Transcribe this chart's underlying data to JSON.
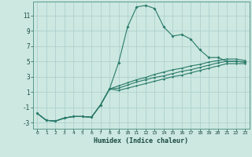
{
  "xlabel": "Humidex (Indice chaleur)",
  "background_color": "#cce8e0",
  "grid_color": "#aacccc",
  "line_color": "#2a7a6a",
  "xlim": [
    -0.5,
    23.5
  ],
  "ylim": [
    -3.8,
    12.8
  ],
  "xticks": [
    0,
    1,
    2,
    3,
    4,
    5,
    6,
    7,
    8,
    9,
    10,
    11,
    12,
    13,
    14,
    15,
    16,
    17,
    18,
    19,
    20,
    21,
    22,
    23
  ],
  "yticks": [
    -3,
    -1,
    1,
    3,
    5,
    7,
    9,
    11
  ],
  "curve1_x": [
    0,
    1,
    2,
    3,
    4,
    5,
    6,
    7,
    8,
    9,
    10,
    11,
    12,
    13,
    14,
    15,
    16,
    17,
    18,
    19,
    20,
    21,
    22,
    23
  ],
  "curve1_y": [
    -1.8,
    -2.7,
    -2.8,
    -2.4,
    -2.2,
    -2.2,
    -2.3,
    -0.7,
    1.4,
    4.8,
    9.5,
    12.1,
    12.3,
    11.9,
    9.5,
    8.3,
    8.5,
    7.9,
    6.5,
    5.5,
    5.5,
    5.0,
    5.0,
    4.9
  ],
  "curve2_x": [
    0,
    1,
    2,
    3,
    4,
    5,
    6,
    7,
    8,
    9,
    10,
    11,
    12,
    13,
    14,
    15,
    16,
    17,
    18,
    19,
    20,
    21,
    22,
    23
  ],
  "curve2_y": [
    -1.8,
    -2.7,
    -2.8,
    -2.4,
    -2.2,
    -2.2,
    -2.3,
    -0.7,
    1.4,
    1.8,
    2.2,
    2.6,
    2.9,
    3.3,
    3.6,
    3.9,
    4.1,
    4.4,
    4.6,
    4.9,
    5.1,
    5.3,
    5.3,
    5.1
  ],
  "curve3_x": [
    0,
    1,
    2,
    3,
    4,
    5,
    6,
    7,
    8,
    9,
    10,
    11,
    12,
    13,
    14,
    15,
    16,
    17,
    18,
    19,
    20,
    21,
    22,
    23
  ],
  "curve3_y": [
    -1.8,
    -2.7,
    -2.8,
    -2.4,
    -2.2,
    -2.2,
    -2.3,
    -0.7,
    1.4,
    1.5,
    1.9,
    2.3,
    2.6,
    2.9,
    3.1,
    3.4,
    3.7,
    3.9,
    4.2,
    4.5,
    4.8,
    5.0,
    5.0,
    4.9
  ],
  "curve4_x": [
    0,
    1,
    2,
    3,
    4,
    5,
    6,
    7,
    8,
    9,
    10,
    11,
    12,
    13,
    14,
    15,
    16,
    17,
    18,
    19,
    20,
    21,
    22,
    23
  ],
  "curve4_y": [
    -1.8,
    -2.7,
    -2.8,
    -2.4,
    -2.2,
    -2.2,
    -2.3,
    -0.7,
    1.4,
    1.2,
    1.5,
    1.8,
    2.1,
    2.4,
    2.7,
    3.0,
    3.2,
    3.5,
    3.8,
    4.1,
    4.4,
    4.7,
    4.7,
    4.7
  ]
}
